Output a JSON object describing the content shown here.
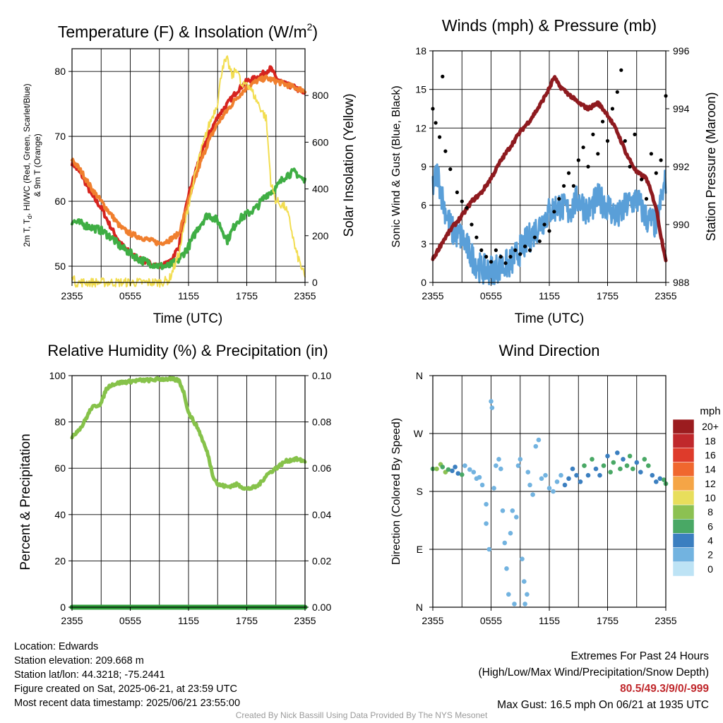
{
  "panels": {
    "temperature": {
      "title": "Temperature (F) & Insolation (W/m",
      "title_sup": "2",
      "title_end": ")",
      "xlabel": "Time (UTC)",
      "ylabel_line1_a": "2m T, T",
      "ylabel_line1_sub": "d",
      "ylabel_line1_b": ", HI/WC (Red, Green, Scarlet/Blue)",
      "ylabel_line2": "& 9m T (Orange)",
      "y2label": "Solar Insolation (Yellow)"
    },
    "winds": {
      "title": "Winds (mph) & Pressure (mb)",
      "xlabel": "Time (UTC)",
      "ylabel": "Sonic Wind & Gust (Blue, Black)",
      "y2label": "Station Pressure (Maroon)"
    },
    "humidity": {
      "title": "Relative Humidity (%) & Precipitation (in)",
      "ylabel": "Percent & Precipitation"
    },
    "direction": {
      "title": "Wind Direction",
      "ylabel": "Direction (Colored By Speed)",
      "colorbar_title": "mph",
      "colorbar_labels": [
        "20+",
        "18",
        "16",
        "14",
        "12",
        "10",
        "8",
        "6",
        "4",
        "2",
        "0"
      ],
      "colorbar_colors": [
        "#9b1c1f",
        "#c0282c",
        "#de3b2b",
        "#f0672e",
        "#f5a546",
        "#e8de5c",
        "#8cc152",
        "#49a865",
        "#3b7fc0",
        "#72b3e0",
        "#bde3f5"
      ]
    }
  },
  "info": {
    "location": "Location: Edwards",
    "elevation": "Station elevation: 209.668 m",
    "latlon": "Station lat/lon: 44.3218; -75.2441",
    "created": "Figure created on Sat, 2025-06-21, at 23:59 UTC",
    "recent": "Most recent data timestamp: 2025/06/21 23:55:00",
    "extremes_title": "Extremes For Past 24 Hours",
    "extremes_legend": "(High/Low/Max Wind/Precipitation/Snow Depth)",
    "extremes_values": "80.5/49.3/9/0/-999",
    "max_gust": "Max Gust: 16.5 mph On 06/21 at 1935 UTC",
    "credit": "Created By Nick Bassill Using Data Provided By The NYS Mesonet"
  },
  "chart_data": [
    {
      "type": "line",
      "title": "Temperature (F) & Insolation (W/m2)",
      "xlabel": "Time (UTC)",
      "ylabel": "2m T, Td, HI/WC (Red, Green, Scarlet/Blue) & 9m T (Orange)",
      "y2label": "Solar Insolation (Yellow)",
      "x_ticks": [
        "2355",
        "0555",
        "1155",
        "1755",
        "2355"
      ],
      "x_hours": [
        0,
        3,
        6,
        9,
        12,
        15,
        18,
        21,
        24
      ],
      "ylim": [
        47.5,
        83.5
      ],
      "y_ticks": [
        50,
        60,
        70,
        80
      ],
      "y2lim": [
        0,
        1000
      ],
      "y2_ticks": [
        0,
        200,
        400,
        600,
        800
      ],
      "grid": true,
      "series": [
        {
          "color": "#d6231f",
          "axis": "left",
          "x": [
            0,
            1,
            2,
            3,
            4,
            5,
            6,
            7,
            8,
            9,
            10,
            11,
            12,
            13,
            14,
            15,
            16,
            17,
            18,
            19,
            20,
            20.5,
            21,
            22,
            23,
            24
          ],
          "values": [
            66,
            64,
            61,
            59,
            56,
            53.5,
            52,
            51,
            50.5,
            50,
            50.5,
            53,
            61,
            66,
            70,
            73,
            75,
            77,
            78.5,
            79,
            80,
            80.5,
            79,
            78,
            77.5,
            76.5
          ]
        },
        {
          "color": "#f07f2e",
          "axis": "left",
          "x": [
            0,
            1,
            2,
            3,
            4,
            5,
            6,
            7,
            8,
            9,
            10,
            11,
            12,
            13,
            14,
            15,
            16,
            17,
            18,
            19,
            20,
            21,
            22,
            23,
            24
          ],
          "values": [
            66.5,
            64.5,
            62,
            60,
            58,
            56,
            55,
            54.5,
            54,
            53.5,
            54,
            55,
            60,
            65,
            69,
            72,
            74,
            76,
            77.5,
            78.5,
            79,
            78.5,
            78,
            77.5,
            77
          ]
        },
        {
          "color": "#3fae44",
          "axis": "left",
          "x": [
            0,
            1,
            2,
            3,
            4,
            5,
            6,
            7,
            8,
            9,
            10,
            11,
            12,
            13,
            14,
            15,
            16,
            17,
            18,
            19,
            20,
            21,
            22,
            23,
            24
          ],
          "values": [
            57,
            56.5,
            56,
            55.5,
            54.5,
            53,
            52,
            51,
            50.5,
            50,
            50,
            51,
            53,
            56,
            58,
            57,
            54,
            57,
            58,
            59,
            61,
            62,
            64,
            64.5,
            63
          ]
        },
        {
          "color": "#f2dd50",
          "axis": "right",
          "x": [
            0,
            0.3,
            1,
            2,
            3,
            4,
            5,
            6,
            7,
            8,
            9,
            10,
            11,
            12,
            13,
            14,
            15,
            15.5,
            16,
            16.5,
            17,
            17.5,
            18,
            19,
            20,
            20.5,
            21,
            22,
            22.5,
            23,
            24
          ],
          "values": [
            40,
            0,
            0,
            0,
            0,
            0,
            0,
            0,
            0,
            0,
            0,
            10,
            120,
            330,
            520,
            660,
            770,
            930,
            950,
            880,
            920,
            830,
            860,
            780,
            700,
            420,
            350,
            320,
            250,
            140,
            20
          ]
        }
      ]
    },
    {
      "type": "line",
      "title": "Winds (mph) & Pressure (mb)",
      "xlabel": "Time (UTC)",
      "ylabel": "Sonic Wind & Gust (Blue, Black)",
      "y2label": "Station Pressure (Maroon)",
      "x_ticks": [
        "2355",
        "0555",
        "1155",
        "1755",
        "2355"
      ],
      "ylim": [
        0,
        18
      ],
      "y_ticks": [
        0,
        3,
        6,
        9,
        12,
        15,
        18
      ],
      "y2lim": [
        988,
        996
      ],
      "y2_ticks": [
        988,
        990,
        992,
        994,
        996
      ],
      "grid": true,
      "series": [
        {
          "color": "#5a9fd8",
          "axis": "left",
          "x": [
            0,
            0.5,
            1,
            1.5,
            2,
            3,
            4,
            5,
            6,
            7,
            8,
            9,
            10,
            11,
            12,
            13,
            14,
            15,
            16,
            17,
            18,
            19,
            20,
            21,
            22,
            23,
            24
          ],
          "values": [
            7.5,
            8.5,
            6.5,
            5,
            4,
            3.5,
            2,
            1,
            1,
            1.2,
            1.5,
            2.5,
            3.5,
            4.5,
            5.5,
            6,
            5.5,
            6.5,
            5.5,
            6.5,
            6,
            5,
            6,
            6.5,
            5,
            4.5,
            8
          ]
        },
        {
          "color": "#8e1a1f",
          "axis": "right",
          "x": [
            0,
            1,
            2,
            3,
            4,
            5,
            6,
            7,
            8,
            9,
            10,
            11,
            12,
            12.5,
            13,
            14,
            15,
            16,
            17,
            18,
            19,
            20,
            21,
            22,
            23,
            23.5,
            24
          ],
          "values": [
            988.8,
            989.4,
            989.9,
            990.3,
            990.8,
            991.1,
            991.6,
            992.2,
            992.7,
            993.2,
            993.6,
            994.1,
            994.7,
            995.1,
            994.8,
            994.5,
            994.2,
            994.0,
            994.2,
            993.8,
            993.2,
            992.4,
            991.8,
            991.6,
            990.6,
            989.6,
            988.8
          ]
        }
      ],
      "gust_points": [
        [
          0.0,
          13.5
        ],
        [
          0.3,
          12.4
        ],
        [
          0.7,
          11.3
        ],
        [
          1.0,
          16.0
        ],
        [
          1.3,
          10.2
        ],
        [
          1.8,
          8.8
        ],
        [
          2.5,
          7.0
        ],
        [
          3.0,
          6.3
        ],
        [
          3.5,
          5.8
        ],
        [
          4.0,
          4.5
        ],
        [
          4.5,
          3.5
        ],
        [
          5.0,
          2.5
        ],
        [
          5.5,
          2.0
        ],
        [
          6.0,
          1.6
        ],
        [
          6.5,
          2.5
        ],
        [
          7.0,
          2.0
        ],
        [
          7.5,
          1.5
        ],
        [
          8.0,
          2.0
        ],
        [
          8.5,
          2.5
        ],
        [
          9.0,
          2.2
        ],
        [
          9.5,
          2.8
        ],
        [
          10.0,
          2.5
        ],
        [
          10.5,
          3.5
        ],
        [
          11.0,
          3.2
        ],
        [
          11.5,
          4.5
        ],
        [
          12.0,
          4.0
        ],
        [
          12.5,
          5.5
        ],
        [
          13.0,
          6.5
        ],
        [
          13.5,
          7.5
        ],
        [
          14.0,
          8.5
        ],
        [
          14.5,
          7.5
        ],
        [
          15.0,
          9.5
        ],
        [
          15.5,
          10.5
        ],
        [
          16.0,
          9.0
        ],
        [
          16.5,
          11.5
        ],
        [
          17.0,
          10.0
        ],
        [
          17.5,
          12.5
        ],
        [
          18.0,
          11.0
        ],
        [
          18.5,
          13.5
        ],
        [
          19.0,
          14.8
        ],
        [
          19.4,
          16.5
        ],
        [
          19.8,
          11.0
        ],
        [
          20.3,
          9.0
        ],
        [
          20.8,
          11.5
        ],
        [
          21.5,
          8.0
        ],
        [
          22.0,
          6.5
        ],
        [
          22.5,
          10.0
        ],
        [
          23.0,
          8.5
        ],
        [
          23.5,
          9.5
        ],
        [
          24.0,
          14.5
        ]
      ]
    },
    {
      "type": "line",
      "title": "Relative Humidity (%) & Precipitation (in)",
      "ylabel": "Percent & Precipitation",
      "x_ticks": [
        "2355",
        "0555",
        "1155",
        "1755",
        "2355"
      ],
      "ylim": [
        0,
        100
      ],
      "y_ticks": [
        0,
        20,
        40,
        60,
        80,
        100
      ],
      "y2lim": [
        0,
        0.1
      ],
      "y2_ticks": [
        "0.00",
        "0.02",
        "0.04",
        "0.06",
        "0.08",
        "0.10"
      ],
      "grid": true,
      "series": [
        {
          "color": "#86c24a",
          "axis": "left",
          "x": [
            0,
            0.5,
            1,
            1.5,
            2,
            3,
            3.5,
            4,
            5,
            6,
            7,
            8,
            9,
            10,
            11,
            11.5,
            12,
            13,
            14,
            14.5,
            15,
            16,
            17,
            18,
            19,
            19.5,
            20,
            21,
            22,
            23,
            24
          ],
          "values": [
            73,
            76,
            78,
            82,
            86,
            88,
            94,
            96,
            97,
            97.5,
            98,
            98,
            98.5,
            98.5,
            98,
            93,
            84,
            77,
            66,
            57,
            53,
            52,
            53,
            51,
            52,
            54,
            57,
            60,
            63,
            64,
            63
          ]
        },
        {
          "color": "#2f9e3a",
          "axis": "right",
          "x": [
            0,
            24
          ],
          "values": [
            0,
            0
          ]
        }
      ]
    },
    {
      "type": "scatter",
      "title": "Wind Direction",
      "ylabel": "Direction (Colored By Speed)",
      "x_ticks": [
        "2355",
        "0555",
        "1155",
        "1755",
        "2355"
      ],
      "y_ticks": [
        "N",
        "E",
        "S",
        "W",
        "N"
      ],
      "ylim": [
        0,
        360
      ],
      "grid": true,
      "colorbar": {
        "title": "mph",
        "labels": [
          "20+",
          "18",
          "16",
          "14",
          "12",
          "10",
          "8",
          "6",
          "4",
          "2",
          "0"
        ]
      },
      "points": [
        [
          0.0,
          215,
          6
        ],
        [
          0.4,
          215,
          8
        ],
        [
          0.8,
          222,
          7
        ],
        [
          1.0,
          218,
          6
        ],
        [
          1.3,
          210,
          8
        ],
        [
          1.6,
          214,
          5
        ],
        [
          2.0,
          212,
          4
        ],
        [
          2.3,
          218,
          4
        ],
        [
          2.6,
          208,
          4
        ],
        [
          3.0,
          206,
          5
        ],
        [
          3.3,
          220,
          2
        ],
        [
          3.8,
          214,
          1
        ],
        [
          4.2,
          210,
          1
        ],
        [
          4.5,
          200,
          1
        ],
        [
          4.8,
          202,
          1
        ],
        [
          5.1,
          190,
          1
        ],
        [
          5.5,
          160,
          1
        ],
        [
          5.5,
          130,
          1
        ],
        [
          5.8,
          90,
          1
        ],
        [
          6.0,
          320,
          1
        ],
        [
          6.1,
          310,
          1
        ],
        [
          6.3,
          185,
          1
        ],
        [
          6.5,
          220,
          1
        ],
        [
          6.8,
          230,
          1
        ],
        [
          7.0,
          215,
          1
        ],
        [
          7.2,
          150,
          1
        ],
        [
          7.4,
          100,
          1
        ],
        [
          7.6,
          60,
          1
        ],
        [
          7.8,
          20,
          1
        ],
        [
          8.0,
          115,
          1
        ],
        [
          8.2,
          150,
          1
        ],
        [
          8.4,
          5,
          1
        ],
        [
          8.6,
          140,
          1
        ],
        [
          8.8,
          220,
          1
        ],
        [
          9.0,
          230,
          1
        ],
        [
          9.2,
          75,
          1
        ],
        [
          9.4,
          40,
          1
        ],
        [
          9.5,
          5,
          1
        ],
        [
          9.7,
          20,
          1
        ],
        [
          9.8,
          210,
          1
        ],
        [
          10.0,
          190,
          1
        ],
        [
          10.3,
          175,
          1
        ],
        [
          10.6,
          250,
          1
        ],
        [
          10.9,
          260,
          1
        ],
        [
          11.2,
          200,
          1
        ],
        [
          11.6,
          205,
          1
        ],
        [
          12.0,
          185,
          1
        ],
        [
          12.4,
          180,
          2
        ],
        [
          12.8,
          195,
          2
        ],
        [
          13.2,
          205,
          2
        ],
        [
          13.6,
          190,
          3
        ],
        [
          14.0,
          200,
          3
        ],
        [
          14.4,
          215,
          3
        ],
        [
          14.8,
          205,
          4
        ],
        [
          15.2,
          195,
          4
        ],
        [
          15.6,
          220,
          5
        ],
        [
          16.0,
          205,
          4
        ],
        [
          16.4,
          230,
          6
        ],
        [
          16.8,
          215,
          4
        ],
        [
          17.2,
          205,
          3
        ],
        [
          17.6,
          220,
          5
        ],
        [
          18.0,
          235,
          3
        ],
        [
          18.3,
          210,
          5
        ],
        [
          18.6,
          225,
          6
        ],
        [
          19.0,
          240,
          4
        ],
        [
          19.3,
          215,
          6
        ],
        [
          19.6,
          230,
          3
        ],
        [
          20.0,
          220,
          6
        ],
        [
          20.3,
          235,
          6
        ],
        [
          20.6,
          215,
          5
        ],
        [
          21.0,
          225,
          4
        ],
        [
          21.4,
          210,
          3
        ],
        [
          21.8,
          230,
          5
        ],
        [
          22.2,
          220,
          6
        ],
        [
          22.6,
          205,
          4
        ],
        [
          23.0,
          195,
          4
        ],
        [
          23.4,
          200,
          3
        ],
        [
          23.8,
          198,
          6
        ],
        [
          24.0,
          192,
          5
        ]
      ]
    }
  ]
}
